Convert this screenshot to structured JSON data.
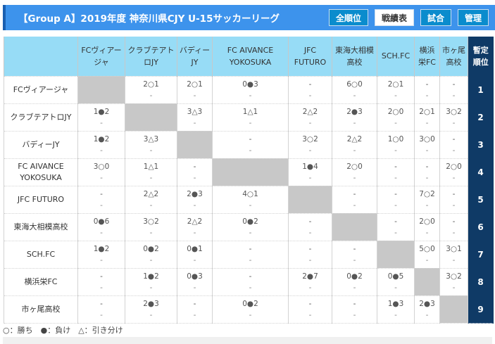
{
  "header": {
    "title": "【Group A】2019年度 神奈川県CJY U-15サッカーリーグ",
    "buttons": [
      {
        "label": "全順位",
        "active": false
      },
      {
        "label": "戦績表",
        "active": true
      },
      {
        "label": "試合",
        "active": false
      },
      {
        "label": "管理",
        "active": false
      }
    ]
  },
  "table": {
    "columns": [
      "FCヴィアージャ",
      "クラブテアトロJY",
      "バディーJY",
      "FC AIVANCE YOKOSUKA",
      "JFC FUTURO",
      "東海大相模高校",
      "SCH.FC",
      "横浜栄FC",
      "市ヶ尾高校"
    ],
    "rank_header": "暫定順位",
    "rows": [
      {
        "team": "FCヴィアージャ",
        "rank": "1",
        "cells": [
          null,
          [
            "2○1",
            "-"
          ],
          [
            "2○1",
            "-"
          ],
          [
            "0●3",
            "-"
          ],
          [
            "-",
            "-"
          ],
          [
            "6○0",
            "-"
          ],
          [
            "2○1",
            "-"
          ],
          [
            "-",
            "-"
          ],
          [
            "-",
            "-"
          ]
        ]
      },
      {
        "team": "クラブテアトロJY",
        "rank": "2",
        "cells": [
          [
            "1●2",
            "-"
          ],
          null,
          [
            "3△3",
            "-"
          ],
          [
            "1△1",
            "-"
          ],
          [
            "2△2",
            "-"
          ],
          [
            "2●3",
            "-"
          ],
          [
            "2○0",
            "-"
          ],
          [
            "2○1",
            "-"
          ],
          [
            "3○2",
            "-"
          ]
        ]
      },
      {
        "team": "バディーJY",
        "rank": "3",
        "cells": [
          [
            "1●2",
            "-"
          ],
          [
            "3△3",
            "-"
          ],
          null,
          [
            "-",
            "-"
          ],
          [
            "3○2",
            "-"
          ],
          [
            "2△2",
            "-"
          ],
          [
            "1○0",
            "-"
          ],
          [
            "3○0",
            "-"
          ],
          [
            "-",
            "-"
          ]
        ]
      },
      {
        "team": "FC AIVANCE YOKOSUKA",
        "rank": "4",
        "cells": [
          [
            "3○0",
            "-"
          ],
          [
            "1△1",
            "-"
          ],
          [
            "-",
            "-"
          ],
          null,
          [
            "1●4",
            "-"
          ],
          [
            "2○0",
            "-"
          ],
          [
            "-",
            "-"
          ],
          [
            "-",
            "-"
          ],
          [
            "2○0",
            "-"
          ]
        ]
      },
      {
        "team": "JFC FUTURO",
        "rank": "5",
        "cells": [
          [
            "-",
            "-"
          ],
          [
            "2△2",
            "-"
          ],
          [
            "2●3",
            "-"
          ],
          [
            "4○1",
            "-"
          ],
          null,
          [
            "-",
            "-"
          ],
          [
            "-",
            "-"
          ],
          [
            "7○2",
            "-"
          ],
          [
            "-",
            "-"
          ]
        ]
      },
      {
        "team": "東海大相模高校",
        "rank": "6",
        "cells": [
          [
            "0●6",
            "-"
          ],
          [
            "3○2",
            "-"
          ],
          [
            "2△2",
            "-"
          ],
          [
            "0●2",
            "-"
          ],
          [
            "-",
            "-"
          ],
          null,
          [
            "-",
            "-"
          ],
          [
            "2○0",
            "-"
          ],
          [
            "-",
            "-"
          ]
        ]
      },
      {
        "team": "SCH.FC",
        "rank": "7",
        "cells": [
          [
            "1●2",
            "-"
          ],
          [
            "0●2",
            "-"
          ],
          [
            "0●1",
            "-"
          ],
          [
            "-",
            "-"
          ],
          [
            "-",
            "-"
          ],
          [
            "-",
            "-"
          ],
          null,
          [
            "5○0",
            "-"
          ],
          [
            "3○1",
            "-"
          ]
        ]
      },
      {
        "team": "横浜栄FC",
        "rank": "8",
        "cells": [
          [
            "-",
            "-"
          ],
          [
            "1●2",
            "-"
          ],
          [
            "0●3",
            "-"
          ],
          [
            "-",
            "-"
          ],
          [
            "2●7",
            "-"
          ],
          [
            "0●2",
            "-"
          ],
          [
            "0●5",
            "-"
          ],
          null,
          [
            "3○2",
            "-"
          ]
        ]
      },
      {
        "team": "市ヶ尾高校",
        "rank": "9",
        "cells": [
          [
            "-",
            "-"
          ],
          [
            "2●3",
            "-"
          ],
          [
            "-",
            "-"
          ],
          [
            "0●2",
            "-"
          ],
          [
            "-",
            "-"
          ],
          [
            "-",
            "-"
          ],
          [
            "1●3",
            "-"
          ],
          [
            "2●3",
            "-"
          ],
          null
        ]
      }
    ]
  },
  "legend": "○：勝ち　●：負け　△：引き分け"
}
